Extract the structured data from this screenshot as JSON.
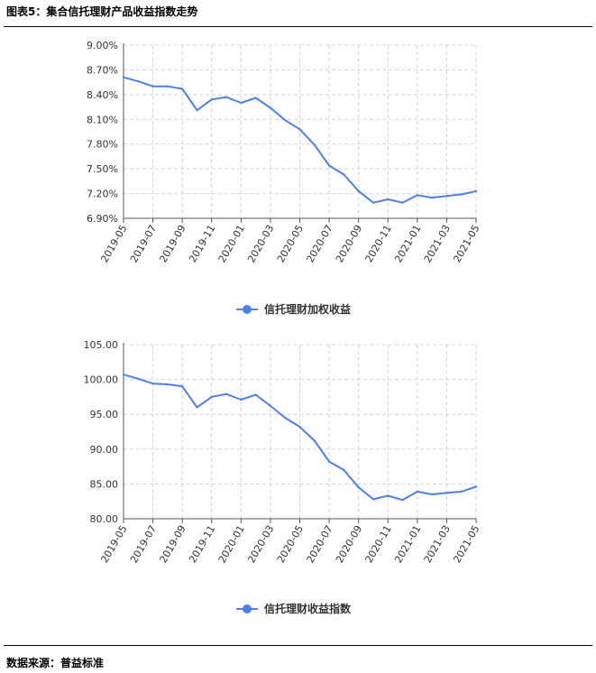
{
  "figure": {
    "title": "图表5：集合信托理财产品收益指数走势",
    "source": "数据来源：普益标准"
  },
  "chart_data": [
    {
      "type": "line",
      "legend": "信托理财加权收益",
      "legend_position": "bottom-center",
      "grid": true,
      "color": "#4f80e8",
      "ylim": [
        6.9,
        9.0
      ],
      "yticks": [
        "6.90%",
        "7.20%",
        "7.50%",
        "7.80%",
        "8.10%",
        "8.40%",
        "8.70%",
        "9.00%"
      ],
      "ytick_values": [
        6.9,
        7.2,
        7.5,
        7.8,
        8.1,
        8.4,
        8.7,
        9.0
      ],
      "xticks": [
        "2019-05",
        "2019-07",
        "2019-09",
        "2019-11",
        "2020-01",
        "2020-03",
        "2020-05",
        "2020-07",
        "2020-09",
        "2020-11",
        "2021-01",
        "2021-03",
        "2021-05"
      ],
      "x": [
        "2019-05",
        "2019-06",
        "2019-07",
        "2019-08",
        "2019-09",
        "2019-10",
        "2019-11",
        "2019-12",
        "2020-01",
        "2020-02",
        "2020-03",
        "2020-04",
        "2020-05",
        "2020-06",
        "2020-07",
        "2020-08",
        "2020-09",
        "2020-10",
        "2020-11",
        "2020-12",
        "2021-01",
        "2021-02",
        "2021-03",
        "2021-04",
        "2021-05"
      ],
      "series": [
        {
          "name": "信托理财加权收益",
          "values": [
            8.61,
            8.56,
            8.5,
            8.5,
            8.47,
            8.21,
            8.34,
            8.37,
            8.3,
            8.36,
            8.24,
            8.09,
            7.98,
            7.79,
            7.54,
            7.43,
            7.23,
            7.09,
            7.13,
            7.09,
            7.18,
            7.15,
            7.17,
            7.19,
            7.23
          ]
        }
      ]
    },
    {
      "type": "line",
      "legend": "信托理财收益指数",
      "legend_position": "bottom-center",
      "grid": true,
      "color": "#4f80e8",
      "ylim": [
        80,
        105
      ],
      "yticks": [
        "80.00",
        "85.00",
        "90.00",
        "95.00",
        "100.00",
        "105.00"
      ],
      "ytick_values": [
        80,
        85,
        90,
        95,
        100,
        105
      ],
      "xticks": [
        "2019-05",
        "2019-07",
        "2019-09",
        "2019-11",
        "2020-01",
        "2020-03",
        "2020-05",
        "2020-07",
        "2020-09",
        "2020-11",
        "2021-01",
        "2021-03",
        "2021-05"
      ],
      "x": [
        "2019-05",
        "2019-06",
        "2019-07",
        "2019-08",
        "2019-09",
        "2019-10",
        "2019-11",
        "2019-12",
        "2020-01",
        "2020-02",
        "2020-03",
        "2020-04",
        "2020-05",
        "2020-06",
        "2020-07",
        "2020-08",
        "2020-09",
        "2020-10",
        "2020-11",
        "2020-12",
        "2021-01",
        "2021-02",
        "2021-03",
        "2021-04",
        "2021-05"
      ],
      "series": [
        {
          "name": "信托理财收益指数",
          "values": [
            100.7,
            100.1,
            99.4,
            99.3,
            99.0,
            96.0,
            97.5,
            97.9,
            97.1,
            97.8,
            96.2,
            94.5,
            93.2,
            91.2,
            88.2,
            87.0,
            84.5,
            82.8,
            83.3,
            82.7,
            83.9,
            83.5,
            83.7,
            83.9,
            84.6
          ]
        }
      ]
    }
  ]
}
